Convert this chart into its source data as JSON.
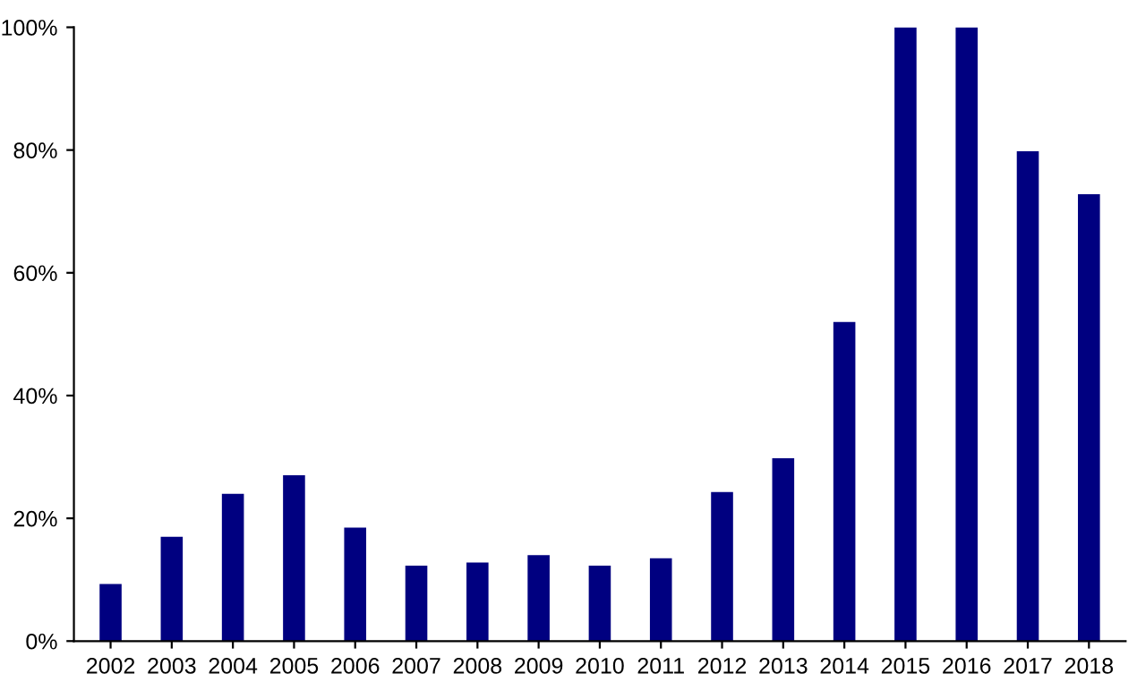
{
  "chart_data": {
    "type": "bar",
    "categories": [
      "2002",
      "2003",
      "2004",
      "2005",
      "2006",
      "2007",
      "2008",
      "2009",
      "2010",
      "2011",
      "2012",
      "2013",
      "2014",
      "2015",
      "2016",
      "2017",
      "2018"
    ],
    "values": [
      9.3,
      17,
      24,
      27,
      18.5,
      12.3,
      12.8,
      14,
      12.3,
      13.5,
      24.3,
      29.8,
      52,
      100,
      100,
      79.8,
      72.8
    ],
    "color": "#000080",
    "ylim": [
      0,
      100
    ],
    "yticks": [
      {
        "value": 0,
        "label": "0%"
      },
      {
        "value": 20,
        "label": "20%"
      },
      {
        "value": 40,
        "label": "40%"
      },
      {
        "value": 60,
        "label": "60%"
      },
      {
        "value": 80,
        "label": "80%"
      },
      {
        "value": 100,
        "label": "100%"
      }
    ],
    "grid": false
  }
}
